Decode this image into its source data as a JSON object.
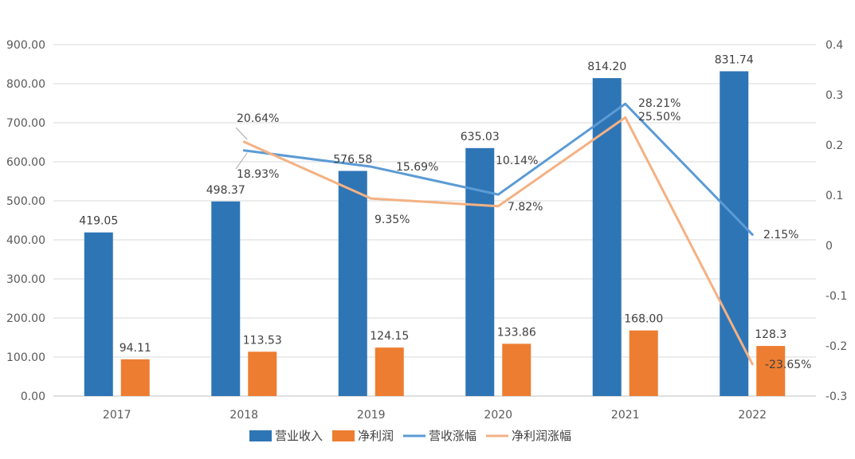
{
  "chart_data": {
    "type": "bar",
    "categories": [
      "2017",
      "2018",
      "2019",
      "2020",
      "2021",
      "2022"
    ],
    "y_left": {
      "ticks": [
        "0.00",
        "100.00",
        "200.00",
        "300.00",
        "400.00",
        "500.00",
        "600.00",
        "700.00",
        "800.00",
        "900.00"
      ],
      "range": [
        0,
        900
      ]
    },
    "y_right": {
      "ticks": [
        "-0.3",
        "-0.2",
        "-0.1",
        "0",
        "0.1",
        "0.2",
        "0.3",
        "0.4"
      ],
      "range": [
        -0.3,
        0.4
      ]
    },
    "grid": true,
    "legend_position": "bottom",
    "series": [
      {
        "name": "营业收入",
        "kind": "bar",
        "axis": "left",
        "color": "#2e75b6",
        "values": [
          419.05,
          498.37,
          576.58,
          635.03,
          814.2,
          831.74
        ],
        "labels": [
          "419.05",
          "498.37",
          "576.58",
          "635.03",
          "814.20",
          "831.74"
        ]
      },
      {
        "name": "净利润",
        "kind": "bar",
        "axis": "left",
        "color": "#ed7d31",
        "values": [
          94.11,
          113.53,
          124.15,
          133.86,
          168.0,
          128.3
        ],
        "labels": [
          "94.11",
          "113.53",
          "124.15",
          "133.86",
          "168.00",
          "128.3"
        ]
      },
      {
        "name": "营收涨幅",
        "kind": "line",
        "axis": "right",
        "color": "#5b9bd5",
        "values": [
          null,
          0.1893,
          0.1569,
          0.1014,
          0.2821,
          0.0215
        ],
        "labels": [
          null,
          "18.93%",
          "15.69%",
          "10.14%",
          "28.21%",
          "2.15%"
        ]
      },
      {
        "name": "净利润涨幅",
        "kind": "line",
        "axis": "right",
        "color": "#f4b183",
        "values": [
          null,
          0.2064,
          0.0935,
          0.0782,
          0.255,
          -0.2365
        ],
        "labels": [
          null,
          "20.64%",
          "9.35%",
          "7.82%",
          "25.50%",
          "-23.65%"
        ]
      }
    ]
  }
}
